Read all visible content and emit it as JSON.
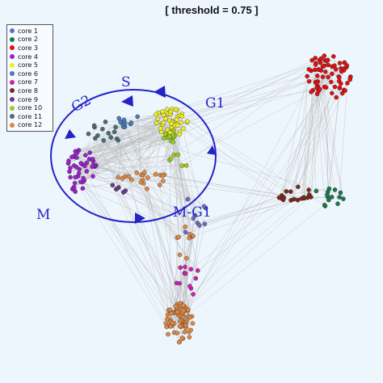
{
  "title": "[ threshold = 0.75 ]",
  "legend": [
    {
      "label": "core 1",
      "color": "#6a6ac8"
    },
    {
      "label": "core 2",
      "color": "#1a7a4a"
    },
    {
      "label": "core 3",
      "color": "#dd1111"
    },
    {
      "label": "core 4",
      "color": "#9922cc"
    },
    {
      "label": "core 5",
      "color": "#eeee22"
    },
    {
      "label": "core 6",
      "color": "#4a7ab8"
    },
    {
      "label": "core 7",
      "color": "#cc22aa"
    },
    {
      "label": "core 8",
      "color": "#7a2a1a"
    },
    {
      "label": "core 9",
      "color": "#6a3a8a"
    },
    {
      "label": "core 10",
      "color": "#9acc22"
    },
    {
      "label": "core 11",
      "color": "#4a6a7a"
    },
    {
      "label": "core 12",
      "color": "#dd8844"
    }
  ],
  "cycle_labels": {
    "g1": "G1",
    "s": "S",
    "g2": "G2",
    "m": "M",
    "mg1": "M-G1"
  },
  "colors": {
    "edge": "#b9b9b9",
    "arrow": "#2323c8",
    "background": "#eef6fd"
  }
}
